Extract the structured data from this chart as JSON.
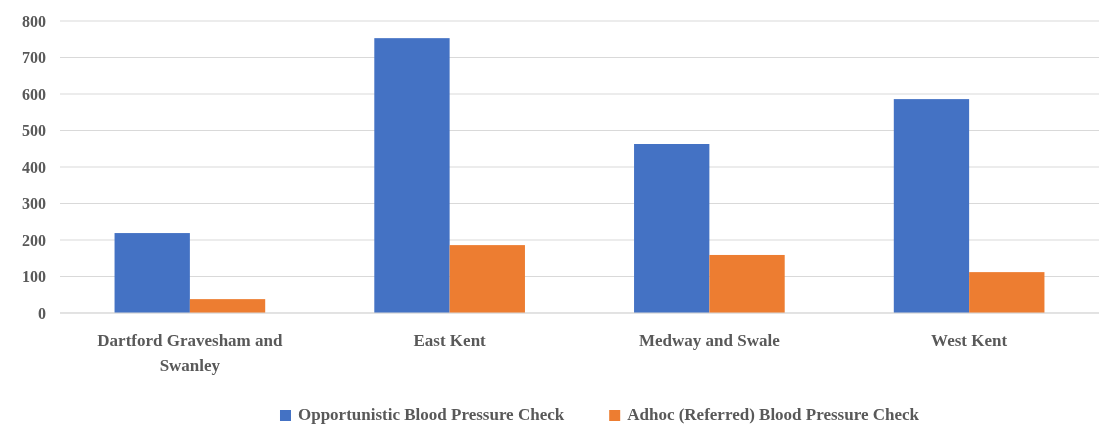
{
  "chart_data": {
    "type": "bar",
    "categories": [
      "Dartford Gravesham and Swanley",
      "East Kent",
      "Medway and Swale",
      "West Kent"
    ],
    "series": [
      {
        "name": "Opportunistic Blood Pressure Check",
        "color": "#4472c4",
        "values": [
          219,
          753,
          463,
          586
        ]
      },
      {
        "name": "Adhoc (Referred) Blood Pressure Check",
        "color": "#ed7d31",
        "values": [
          38,
          186,
          159,
          112
        ]
      }
    ],
    "ylim": [
      0,
      800
    ],
    "yticks": [
      0,
      100,
      200,
      300,
      400,
      500,
      600,
      700,
      800
    ],
    "grid": "y",
    "legend": "bottom"
  }
}
